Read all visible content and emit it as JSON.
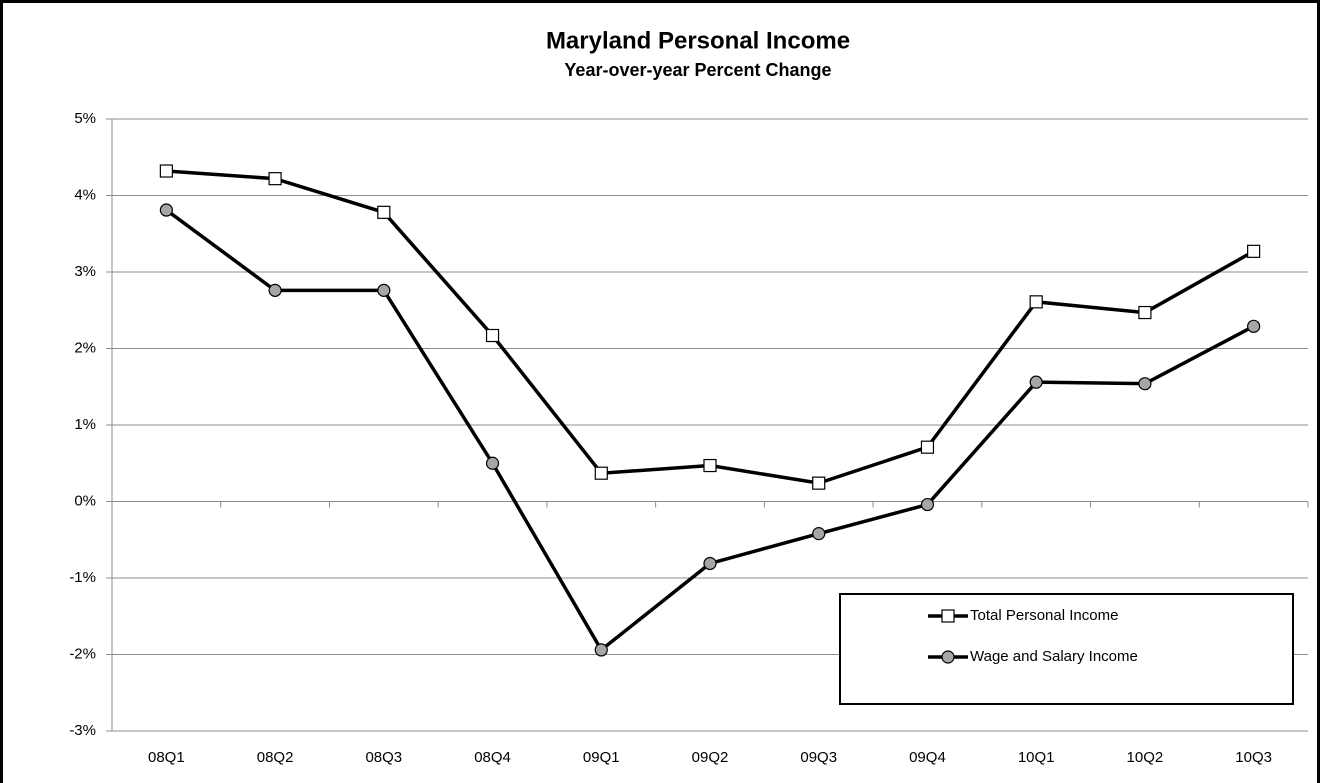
{
  "chart_data": {
    "type": "line",
    "title": "Maryland Personal Income",
    "subtitle": "Year-over-year Percent Change",
    "categories": [
      "08Q1",
      "08Q2",
      "08Q3",
      "08Q4",
      "09Q1",
      "09Q2",
      "09Q3",
      "09Q4",
      "10Q1",
      "10Q2",
      "10Q3"
    ],
    "series": [
      {
        "name": "Total Personal Income",
        "color": "#000000",
        "marker": "square",
        "marker_color": "#ffffff",
        "values": [
          4.32,
          4.22,
          3.78,
          2.17,
          0.37,
          0.47,
          0.24,
          0.71,
          2.61,
          2.47,
          3.27
        ]
      },
      {
        "name": "Wage and Salary Income",
        "color": "#000000",
        "marker": "circle",
        "marker_color": "#a6a6a6",
        "values": [
          3.81,
          2.76,
          2.76,
          0.5,
          -1.94,
          -0.81,
          -0.42,
          -0.04,
          1.56,
          1.54,
          2.29
        ]
      }
    ],
    "ylim": [
      -3,
      5
    ],
    "yticks": [
      {
        "value": -3,
        "label": "-3%"
      },
      {
        "value": -2,
        "label": "-2%"
      },
      {
        "value": -1,
        "label": "-1%"
      },
      {
        "value": 0,
        "label": "0%"
      },
      {
        "value": 1,
        "label": "1%"
      },
      {
        "value": 2,
        "label": "2%"
      },
      {
        "value": 3,
        "label": "3%"
      },
      {
        "value": 4,
        "label": "4%"
      },
      {
        "value": 5,
        "label": "5%"
      }
    ],
    "grid": true,
    "legend": "lower right"
  }
}
